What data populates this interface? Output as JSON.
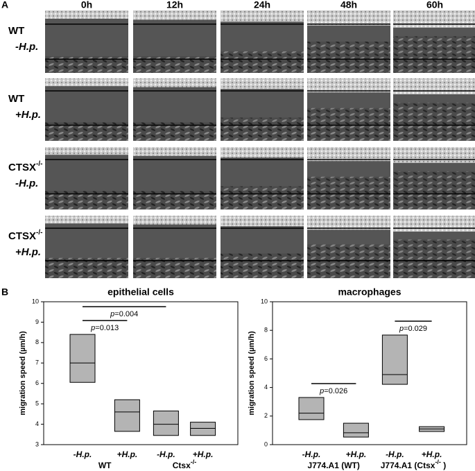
{
  "panel_a": {
    "label": "A",
    "columns": [
      "0h",
      "12h",
      "24h",
      "48h",
      "60h"
    ],
    "rows": [
      {
        "name": "WT",
        "condition": "-H.p."
      },
      {
        "name": "WT",
        "condition": "+H.p."
      },
      {
        "name": "CTSX",
        "sup": "-/-",
        "condition": "-H.p."
      },
      {
        "name": "CTSX",
        "sup": "-/-",
        "condition": "+H.p."
      }
    ]
  },
  "panel_b": {
    "label": "B"
  },
  "chart_data": [
    {
      "type": "box",
      "title": "epithelial cells",
      "y_label": "migration speed (µm/h)",
      "categories": [
        "-H.p.",
        "+H.p.",
        "-H.p.",
        "+H.p."
      ],
      "groups": [
        {
          "name": "WT"
        },
        {
          "name": "Ctsx",
          "sup": "-/-"
        }
      ],
      "boxes": [
        {
          "q1": 6.05,
          "median": 7.0,
          "q3": 8.4
        },
        {
          "q1": 3.65,
          "median": 4.6,
          "q3": 5.2
        },
        {
          "q1": 3.45,
          "median": 4.0,
          "q3": 4.65
        },
        {
          "q1": 3.45,
          "median": 3.8,
          "q3": 4.1
        }
      ],
      "color": "#b4b4b4",
      "ylim": [
        3,
        10
      ],
      "yticks": [
        3,
        4,
        5,
        6,
        7,
        8,
        9,
        10
      ],
      "annotations": [
        {
          "from": 0,
          "to": 1,
          "text": "p=0.013"
        },
        {
          "from": 0,
          "to": 2,
          "text": "p=0.004"
        }
      ]
    },
    {
      "type": "box",
      "title": "macrophages",
      "y_label": "migration speed (µm/h)",
      "categories": [
        "-H.p.",
        "+H.p.",
        "-H.p.",
        "+H.p."
      ],
      "groups": [
        {
          "name": "J774.A1 (WT)"
        },
        {
          "name": "J774.A1 (Ctsx",
          "sup": "-/-",
          "tail": " )"
        }
      ],
      "boxes": [
        {
          "q1": 1.75,
          "median": 2.2,
          "q3": 3.3
        },
        {
          "q1": 0.53,
          "median": 0.83,
          "q3": 1.5
        },
        {
          "q1": 4.22,
          "median": 4.9,
          "q3": 7.67
        },
        {
          "q1": 0.92,
          "median": 1.1,
          "q3": 1.26
        }
      ],
      "color": "#b4b4b4",
      "ylim": [
        0,
        10
      ],
      "yticks": [
        0,
        2,
        4,
        6,
        8,
        10
      ],
      "annotations": [
        {
          "from": 0,
          "to": 1,
          "text": "p=0.026"
        },
        {
          "from": 2,
          "to": 3,
          "text": "p=0.029"
        }
      ]
    }
  ]
}
